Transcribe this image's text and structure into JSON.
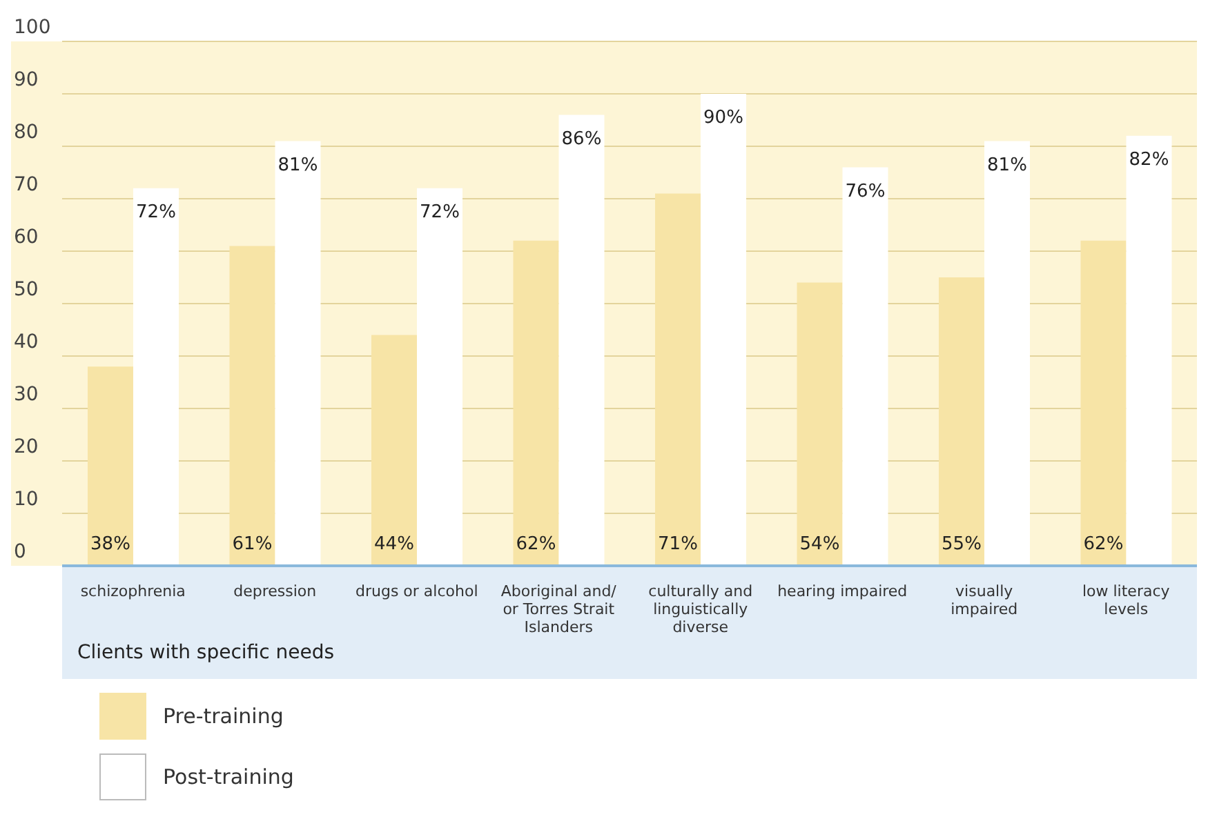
{
  "chart_data": {
    "type": "bar",
    "xlabel": "Clients with specific needs",
    "categories": [
      "schizophrenia",
      "depression",
      "drugs or alcohol",
      "Aboriginal and/ or Torres Strait Islanders",
      "culturally and linguistically diverse",
      "hearing impaired",
      "visually impaired",
      "low literacy levels"
    ],
    "series": [
      {
        "name": "Pre-training",
        "color": "#f7e4a6",
        "values": [
          38,
          61,
          44,
          62,
          71,
          54,
          55,
          62
        ],
        "value_labels": [
          "38%",
          "61%",
          "44%",
          "62%",
          "71%",
          "54%",
          "55%",
          "62%"
        ]
      },
      {
        "name": "Post-training",
        "color": "#ffffff",
        "values": [
          72,
          81,
          72,
          86,
          90,
          76,
          81,
          82
        ],
        "value_labels": [
          "72%",
          "81%",
          "72%",
          "86%",
          "90%",
          "76%",
          "81%",
          "82%"
        ]
      }
    ],
    "ylim": [
      0,
      100
    ],
    "yticks": [
      0,
      10,
      20,
      30,
      40,
      50,
      60,
      70,
      80,
      90,
      100
    ],
    "grid": "y",
    "legend": "bottom left"
  }
}
